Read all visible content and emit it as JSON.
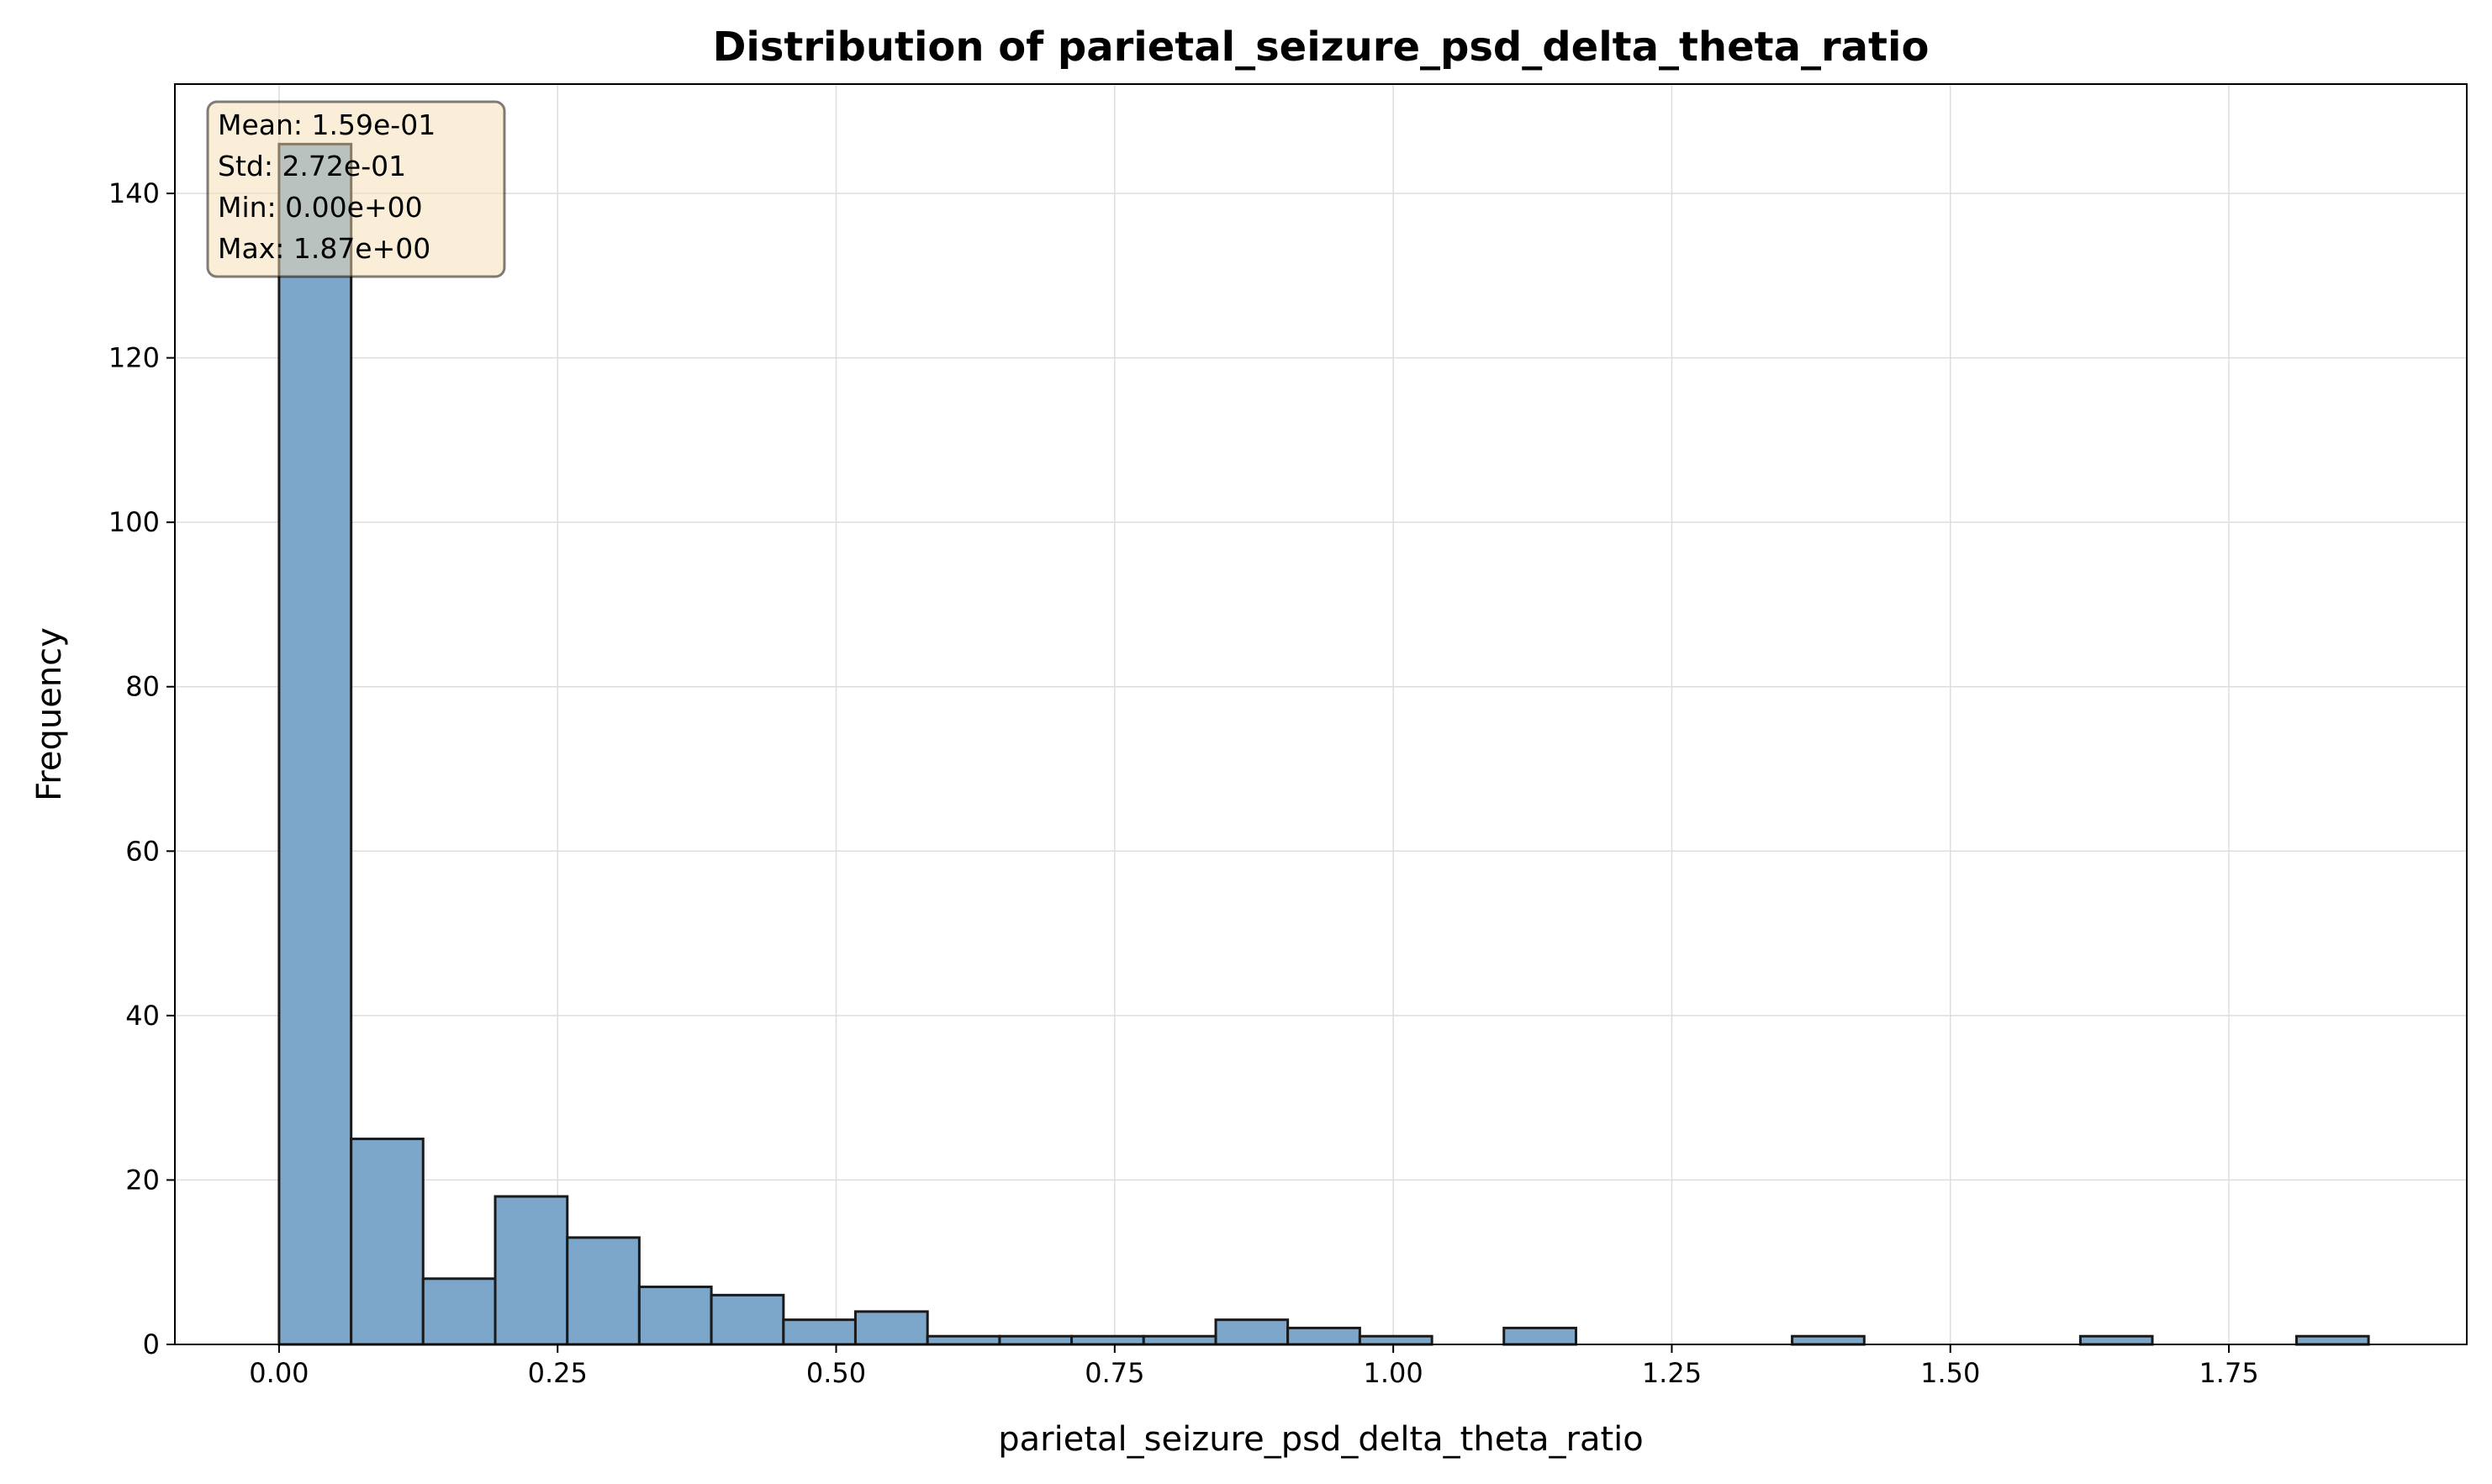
{
  "chart_data": {
    "type": "bar",
    "title": "Distribution of parietal_seizure_psd_delta_theta_ratio",
    "xlabel": "parietal_seizure_psd_delta_theta_ratio",
    "ylabel": "Frequency",
    "xlim": [
      -0.0935,
      1.9635
    ],
    "ylim": [
      0,
      153.3
    ],
    "xticks": [
      0.0,
      0.25,
      0.5,
      0.75,
      1.0,
      1.25,
      1.5,
      1.75
    ],
    "xtick_labels": [
      "0.00",
      "0.25",
      "0.50",
      "0.75",
      "1.00",
      "1.25",
      "1.50",
      "1.75"
    ],
    "yticks": [
      0,
      20,
      40,
      60,
      80,
      100,
      120,
      140
    ],
    "ytick_labels": [
      "0",
      "20",
      "40",
      "60",
      "80",
      "100",
      "120",
      "140"
    ],
    "bin_edges": [
      0.0,
      0.0647,
      0.1293,
      0.194,
      0.2587,
      0.3233,
      0.388,
      0.4527,
      0.5173,
      0.582,
      0.6467,
      0.7113,
      0.776,
      0.8407,
      0.9053,
      0.97,
      1.0347,
      1.0993,
      1.164,
      1.2287,
      1.2933,
      1.358,
      1.4227,
      1.4873,
      1.552,
      1.6167,
      1.6813,
      1.746,
      1.8107,
      1.8753
    ],
    "values": [
      146,
      25,
      8,
      18,
      13,
      7,
      6,
      3,
      4,
      1,
      1,
      1,
      1,
      3,
      2,
      1,
      0,
      2,
      0,
      0,
      0,
      1,
      0,
      0,
      0,
      1,
      0,
      0,
      1
    ],
    "bar_color": "#7ca7cb",
    "bar_edge_color": "#1a1a1a",
    "grid": true,
    "stats_box": {
      "lines": [
        "Mean: 1.59e-01",
        "Std: 2.72e-01",
        "Min: 0.00e+00",
        "Max: 1.87e+00"
      ],
      "background": "#f5deb3",
      "position": "top-left"
    }
  }
}
